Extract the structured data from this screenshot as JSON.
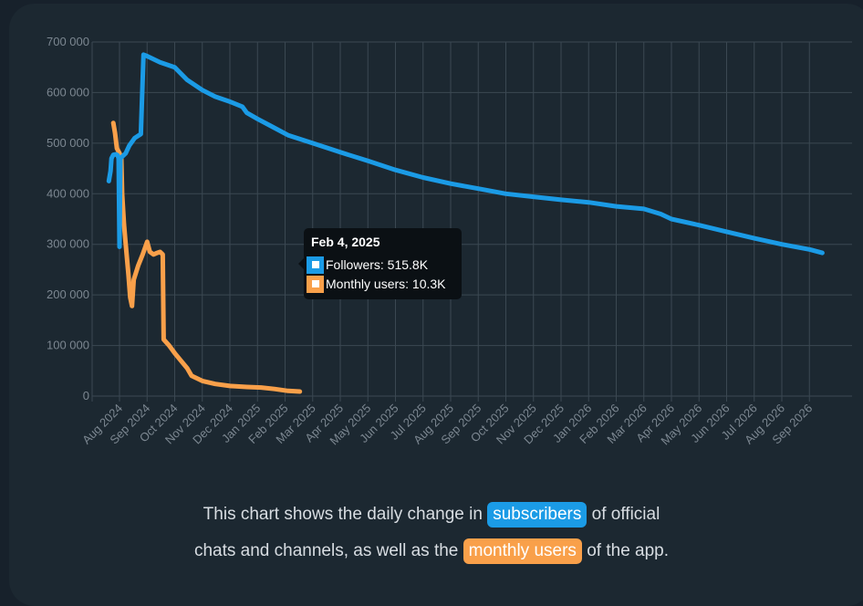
{
  "chart_data": {
    "type": "line",
    "y_ticks": [
      "700 000",
      "600 000",
      "500 000",
      "400 000",
      "300 000",
      "200 000",
      "100 000",
      "0"
    ],
    "ylim": [
      0,
      700000
    ],
    "x_ticks": [
      "Aug 2024",
      "Sep 2024",
      "Oct 2024",
      "Nov 2024",
      "Dec 2024",
      "Jan 2025",
      "Feb 2025",
      "Mar 2025",
      "Apr 2025",
      "May 2025",
      "Jun 2025",
      "Jul 2025",
      "Aug 2025",
      "Sep 2025",
      "Oct 2025",
      "Nov 2025",
      "Dec 2025",
      "Jan 2026",
      "Feb 2026",
      "Mar 2026",
      "Apr 2026",
      "May 2026",
      "Jun 2026",
      "Jul 2026",
      "Aug 2026",
      "Sep 2026"
    ],
    "grid": true,
    "series": [
      {
        "name": "Followers",
        "color": "#1b9be6",
        "points": [
          [
            "2024-07-20",
            425000
          ],
          [
            "2024-07-22",
            445000
          ],
          [
            "2024-07-23",
            470000
          ],
          [
            "2024-07-25",
            477000
          ],
          [
            "2024-07-28",
            478000
          ],
          [
            "2024-07-30",
            476000
          ],
          [
            "2024-07-31",
            470000
          ],
          [
            "2024-08-01",
            295000
          ],
          [
            "2024-08-02",
            470000
          ],
          [
            "2024-08-05",
            475000
          ],
          [
            "2024-08-08",
            480000
          ],
          [
            "2024-08-12",
            495000
          ],
          [
            "2024-08-18",
            510000
          ],
          [
            "2024-08-25",
            518000
          ],
          [
            "2024-08-28",
            675000
          ],
          [
            "2024-09-01",
            672000
          ],
          [
            "2024-09-15",
            660000
          ],
          [
            "2024-10-01",
            650000
          ],
          [
            "2024-10-15",
            625000
          ],
          [
            "2024-11-01",
            605000
          ],
          [
            "2024-11-15",
            592000
          ],
          [
            "2024-12-01",
            582000
          ],
          [
            "2024-12-15",
            572000
          ],
          [
            "2024-12-20",
            560000
          ],
          [
            "2025-01-01",
            548000
          ],
          [
            "2025-01-15",
            535000
          ],
          [
            "2025-02-04",
            515800
          ],
          [
            "2025-03-01",
            500000
          ],
          [
            "2025-04-01",
            482000
          ],
          [
            "2025-05-01",
            465000
          ],
          [
            "2025-06-01",
            447000
          ],
          [
            "2025-07-01",
            432000
          ],
          [
            "2025-08-01",
            420000
          ],
          [
            "2025-09-01",
            410000
          ],
          [
            "2025-10-01",
            400000
          ],
          [
            "2025-11-01",
            394000
          ],
          [
            "2025-12-01",
            388000
          ],
          [
            "2026-01-01",
            383000
          ],
          [
            "2026-02-01",
            375000
          ],
          [
            "2026-03-01",
            370000
          ],
          [
            "2026-03-20",
            360000
          ],
          [
            "2026-04-01",
            350000
          ],
          [
            "2026-05-01",
            338000
          ],
          [
            "2026-06-01",
            325000
          ],
          [
            "2026-07-01",
            312000
          ],
          [
            "2026-08-01",
            300000
          ],
          [
            "2026-09-01",
            290000
          ],
          [
            "2026-09-15",
            283000
          ]
        ]
      },
      {
        "name": "Monthly users",
        "color": "#f9a04a",
        "points": [
          [
            "2024-07-25",
            540000
          ],
          [
            "2024-07-27",
            520000
          ],
          [
            "2024-07-29",
            490000
          ],
          [
            "2024-08-01",
            480000
          ],
          [
            "2024-08-03",
            470000
          ],
          [
            "2024-08-04",
            400000
          ],
          [
            "2024-08-06",
            340000
          ],
          [
            "2024-08-08",
            300000
          ],
          [
            "2024-08-11",
            240000
          ],
          [
            "2024-08-13",
            195000
          ],
          [
            "2024-08-15",
            178000
          ],
          [
            "2024-08-17",
            230000
          ],
          [
            "2024-08-22",
            258000
          ],
          [
            "2024-08-27",
            280000
          ],
          [
            "2024-09-01",
            305000
          ],
          [
            "2024-09-04",
            285000
          ],
          [
            "2024-09-08",
            280000
          ],
          [
            "2024-09-12",
            283000
          ],
          [
            "2024-09-15",
            285000
          ],
          [
            "2024-09-18",
            280000
          ],
          [
            "2024-09-19",
            112000
          ],
          [
            "2024-09-25",
            100000
          ],
          [
            "2024-10-01",
            85000
          ],
          [
            "2024-10-08",
            70000
          ],
          [
            "2024-10-15",
            55000
          ],
          [
            "2024-10-20",
            40000
          ],
          [
            "2024-11-01",
            30000
          ],
          [
            "2024-11-15",
            24000
          ],
          [
            "2024-12-01",
            20000
          ],
          [
            "2024-12-20",
            18000
          ],
          [
            "2025-01-05",
            17000
          ],
          [
            "2025-01-20",
            14000
          ],
          [
            "2025-02-04",
            10300
          ],
          [
            "2025-02-16",
            9000
          ]
        ]
      }
    ]
  },
  "tooltip": {
    "date": "Feb 4, 2025",
    "row1": "Followers: 515.8K",
    "row2": "Monthly users: 10.3K"
  },
  "caption": {
    "line1_pre": "This chart shows the daily change in",
    "line1_pill": "subscribers",
    "line1_post": "of official",
    "line2_pre": "chats and channels, as well as the",
    "line2_pill": "monthly users",
    "line2_post": "of the app."
  },
  "colors": {
    "blue": "#1b9be6",
    "orange": "#f9a04a"
  }
}
